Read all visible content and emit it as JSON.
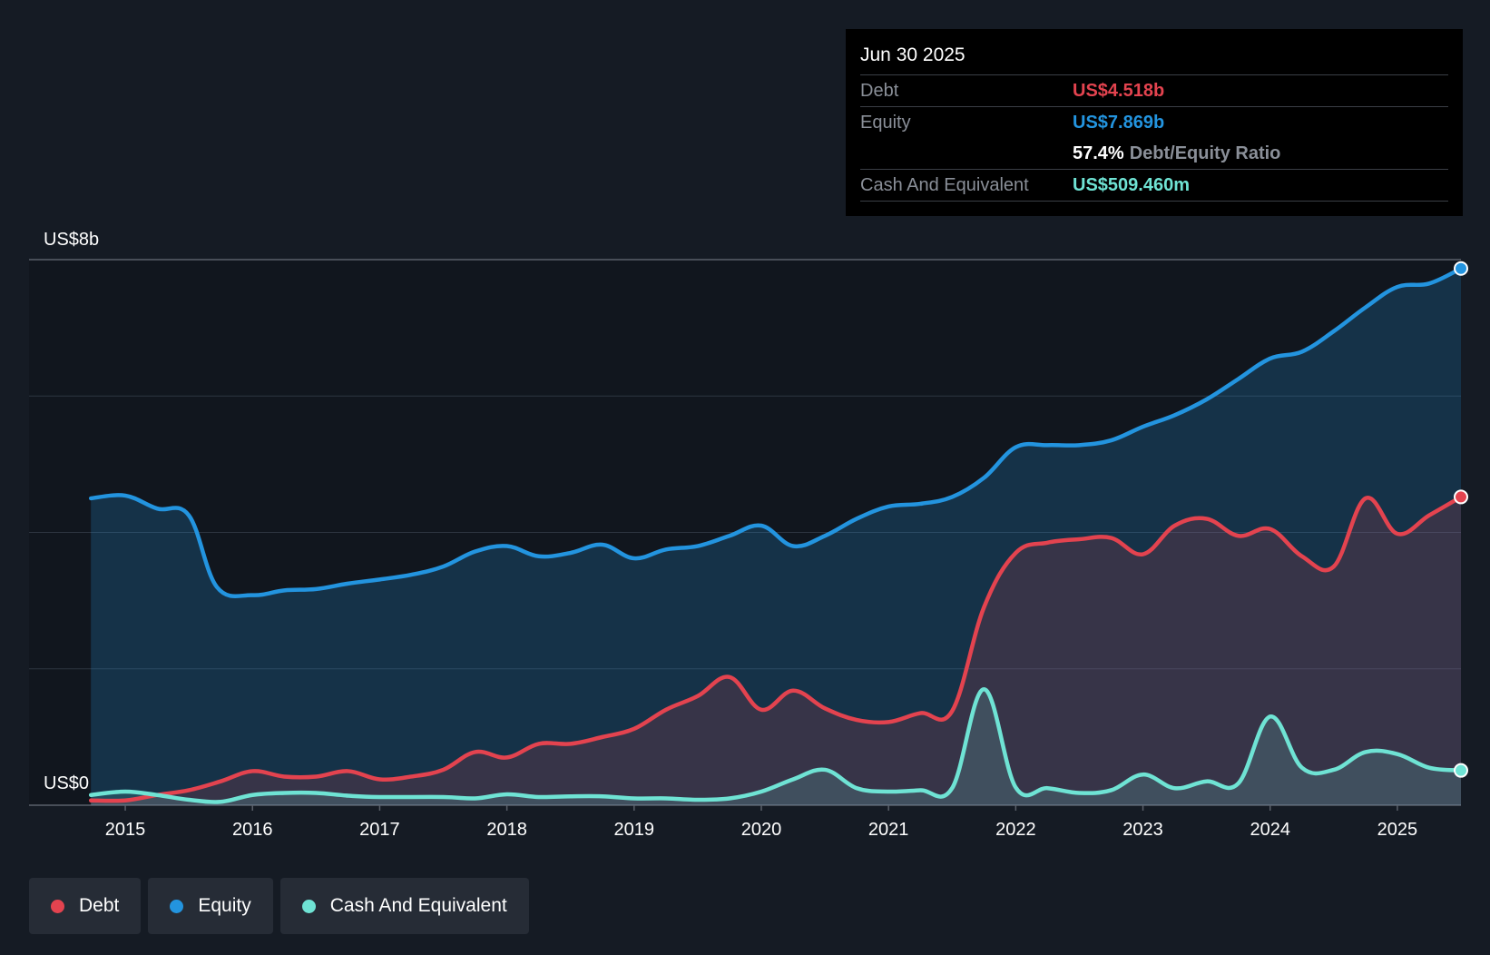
{
  "colors": {
    "debt": "#e3434f",
    "equity": "#2394df",
    "cash": "#6fe3d4"
  },
  "tooltip": {
    "date": "Jun 30 2025",
    "debt_label": "Debt",
    "debt_value": "US$4.518b",
    "equity_label": "Equity",
    "equity_value": "US$7.869b",
    "ratio_pct": "57.4%",
    "ratio_label": "Debt/Equity Ratio",
    "cash_label": "Cash And Equivalent",
    "cash_value": "US$509.460m"
  },
  "legend": [
    {
      "label": "Debt",
      "color": "#e3434f"
    },
    {
      "label": "Equity",
      "color": "#2394df"
    },
    {
      "label": "Cash And Equivalent",
      "color": "#6fe3d4"
    }
  ],
  "chart_data": {
    "type": "area",
    "title": "",
    "y_top_label": "US$8b",
    "y_bottom_label": "US$0",
    "ylim": [
      0,
      8
    ],
    "xlim": [
      2014.7,
      2025.5
    ],
    "x_ticks": [
      {
        "value": 2015,
        "label": "2015"
      },
      {
        "value": 2016,
        "label": "2016"
      },
      {
        "value": 2017,
        "label": "2017"
      },
      {
        "value": 2018,
        "label": "2018"
      },
      {
        "value": 2019,
        "label": "2019"
      },
      {
        "value": 2020,
        "label": "2020"
      },
      {
        "value": 2021,
        "label": "2021"
      },
      {
        "value": 2022,
        "label": "2022"
      },
      {
        "value": 2023,
        "label": "2023"
      },
      {
        "value": 2024,
        "label": "2024"
      },
      {
        "value": 2025,
        "label": "2025"
      }
    ],
    "gridlines": [
      0,
      2,
      4,
      6,
      8
    ],
    "series": [
      {
        "name": "Equity",
        "color": "#2394df",
        "points": [
          [
            2014.73,
            4.5
          ],
          [
            2015.0,
            4.54
          ],
          [
            2015.25,
            4.35
          ],
          [
            2015.5,
            4.25
          ],
          [
            2015.72,
            3.2
          ],
          [
            2016.0,
            3.08
          ],
          [
            2016.25,
            3.15
          ],
          [
            2016.5,
            3.17
          ],
          [
            2016.75,
            3.25
          ],
          [
            2017.0,
            3.31
          ],
          [
            2017.25,
            3.38
          ],
          [
            2017.5,
            3.5
          ],
          [
            2017.75,
            3.72
          ],
          [
            2018.0,
            3.8
          ],
          [
            2018.25,
            3.65
          ],
          [
            2018.5,
            3.7
          ],
          [
            2018.75,
            3.82
          ],
          [
            2019.0,
            3.62
          ],
          [
            2019.25,
            3.75
          ],
          [
            2019.5,
            3.8
          ],
          [
            2019.75,
            3.95
          ],
          [
            2020.0,
            4.1
          ],
          [
            2020.25,
            3.8
          ],
          [
            2020.5,
            3.95
          ],
          [
            2020.75,
            4.2
          ],
          [
            2021.0,
            4.38
          ],
          [
            2021.25,
            4.42
          ],
          [
            2021.5,
            4.52
          ],
          [
            2021.75,
            4.8
          ],
          [
            2022.0,
            5.25
          ],
          [
            2022.25,
            5.28
          ],
          [
            2022.5,
            5.28
          ],
          [
            2022.75,
            5.35
          ],
          [
            2023.0,
            5.55
          ],
          [
            2023.25,
            5.72
          ],
          [
            2023.5,
            5.95
          ],
          [
            2023.75,
            6.25
          ],
          [
            2024.0,
            6.55
          ],
          [
            2024.25,
            6.65
          ],
          [
            2024.5,
            6.95
          ],
          [
            2024.75,
            7.3
          ],
          [
            2025.0,
            7.6
          ],
          [
            2025.25,
            7.65
          ],
          [
            2025.5,
            7.87
          ]
        ]
      },
      {
        "name": "Debt",
        "color": "#e3434f",
        "points": [
          [
            2014.73,
            0.07
          ],
          [
            2015.0,
            0.07
          ],
          [
            2015.25,
            0.15
          ],
          [
            2015.5,
            0.22
          ],
          [
            2015.75,
            0.35
          ],
          [
            2016.0,
            0.5
          ],
          [
            2016.25,
            0.42
          ],
          [
            2016.5,
            0.42
          ],
          [
            2016.75,
            0.5
          ],
          [
            2017.0,
            0.38
          ],
          [
            2017.25,
            0.42
          ],
          [
            2017.5,
            0.52
          ],
          [
            2017.75,
            0.78
          ],
          [
            2018.0,
            0.7
          ],
          [
            2018.25,
            0.9
          ],
          [
            2018.5,
            0.9
          ],
          [
            2018.75,
            1.0
          ],
          [
            2019.0,
            1.12
          ],
          [
            2019.25,
            1.4
          ],
          [
            2019.5,
            1.6
          ],
          [
            2019.75,
            1.88
          ],
          [
            2020.0,
            1.4
          ],
          [
            2020.25,
            1.68
          ],
          [
            2020.5,
            1.42
          ],
          [
            2020.75,
            1.25
          ],
          [
            2021.0,
            1.22
          ],
          [
            2021.25,
            1.35
          ],
          [
            2021.5,
            1.38
          ],
          [
            2021.75,
            2.9
          ],
          [
            2022.0,
            3.7
          ],
          [
            2022.25,
            3.85
          ],
          [
            2022.5,
            3.9
          ],
          [
            2022.75,
            3.92
          ],
          [
            2023.0,
            3.68
          ],
          [
            2023.25,
            4.1
          ],
          [
            2023.5,
            4.2
          ],
          [
            2023.75,
            3.95
          ],
          [
            2024.0,
            4.05
          ],
          [
            2024.25,
            3.65
          ],
          [
            2024.5,
            3.5
          ],
          [
            2024.75,
            4.5
          ],
          [
            2025.0,
            3.98
          ],
          [
            2025.25,
            4.25
          ],
          [
            2025.5,
            4.52
          ]
        ]
      },
      {
        "name": "Cash And Equivalent",
        "color": "#6fe3d4",
        "points": [
          [
            2014.73,
            0.15
          ],
          [
            2015.0,
            0.2
          ],
          [
            2015.25,
            0.15
          ],
          [
            2015.5,
            0.08
          ],
          [
            2015.75,
            0.05
          ],
          [
            2016.0,
            0.15
          ],
          [
            2016.25,
            0.18
          ],
          [
            2016.5,
            0.18
          ],
          [
            2016.75,
            0.14
          ],
          [
            2017.0,
            0.12
          ],
          [
            2017.5,
            0.12
          ],
          [
            2017.75,
            0.1
          ],
          [
            2018.0,
            0.16
          ],
          [
            2018.25,
            0.12
          ],
          [
            2018.5,
            0.13
          ],
          [
            2018.75,
            0.13
          ],
          [
            2019.0,
            0.1
          ],
          [
            2019.25,
            0.1
          ],
          [
            2019.5,
            0.08
          ],
          [
            2019.75,
            0.1
          ],
          [
            2020.0,
            0.2
          ],
          [
            2020.25,
            0.38
          ],
          [
            2020.5,
            0.52
          ],
          [
            2020.75,
            0.25
          ],
          [
            2021.0,
            0.2
          ],
          [
            2021.25,
            0.22
          ],
          [
            2021.5,
            0.25
          ],
          [
            2021.75,
            1.7
          ],
          [
            2022.0,
            0.26
          ],
          [
            2022.25,
            0.25
          ],
          [
            2022.5,
            0.18
          ],
          [
            2022.75,
            0.22
          ],
          [
            2023.0,
            0.45
          ],
          [
            2023.25,
            0.25
          ],
          [
            2023.5,
            0.35
          ],
          [
            2023.75,
            0.32
          ],
          [
            2024.0,
            1.3
          ],
          [
            2024.25,
            0.55
          ],
          [
            2024.5,
            0.52
          ],
          [
            2024.75,
            0.78
          ],
          [
            2025.0,
            0.75
          ],
          [
            2025.25,
            0.55
          ],
          [
            2025.5,
            0.51
          ]
        ]
      }
    ]
  }
}
